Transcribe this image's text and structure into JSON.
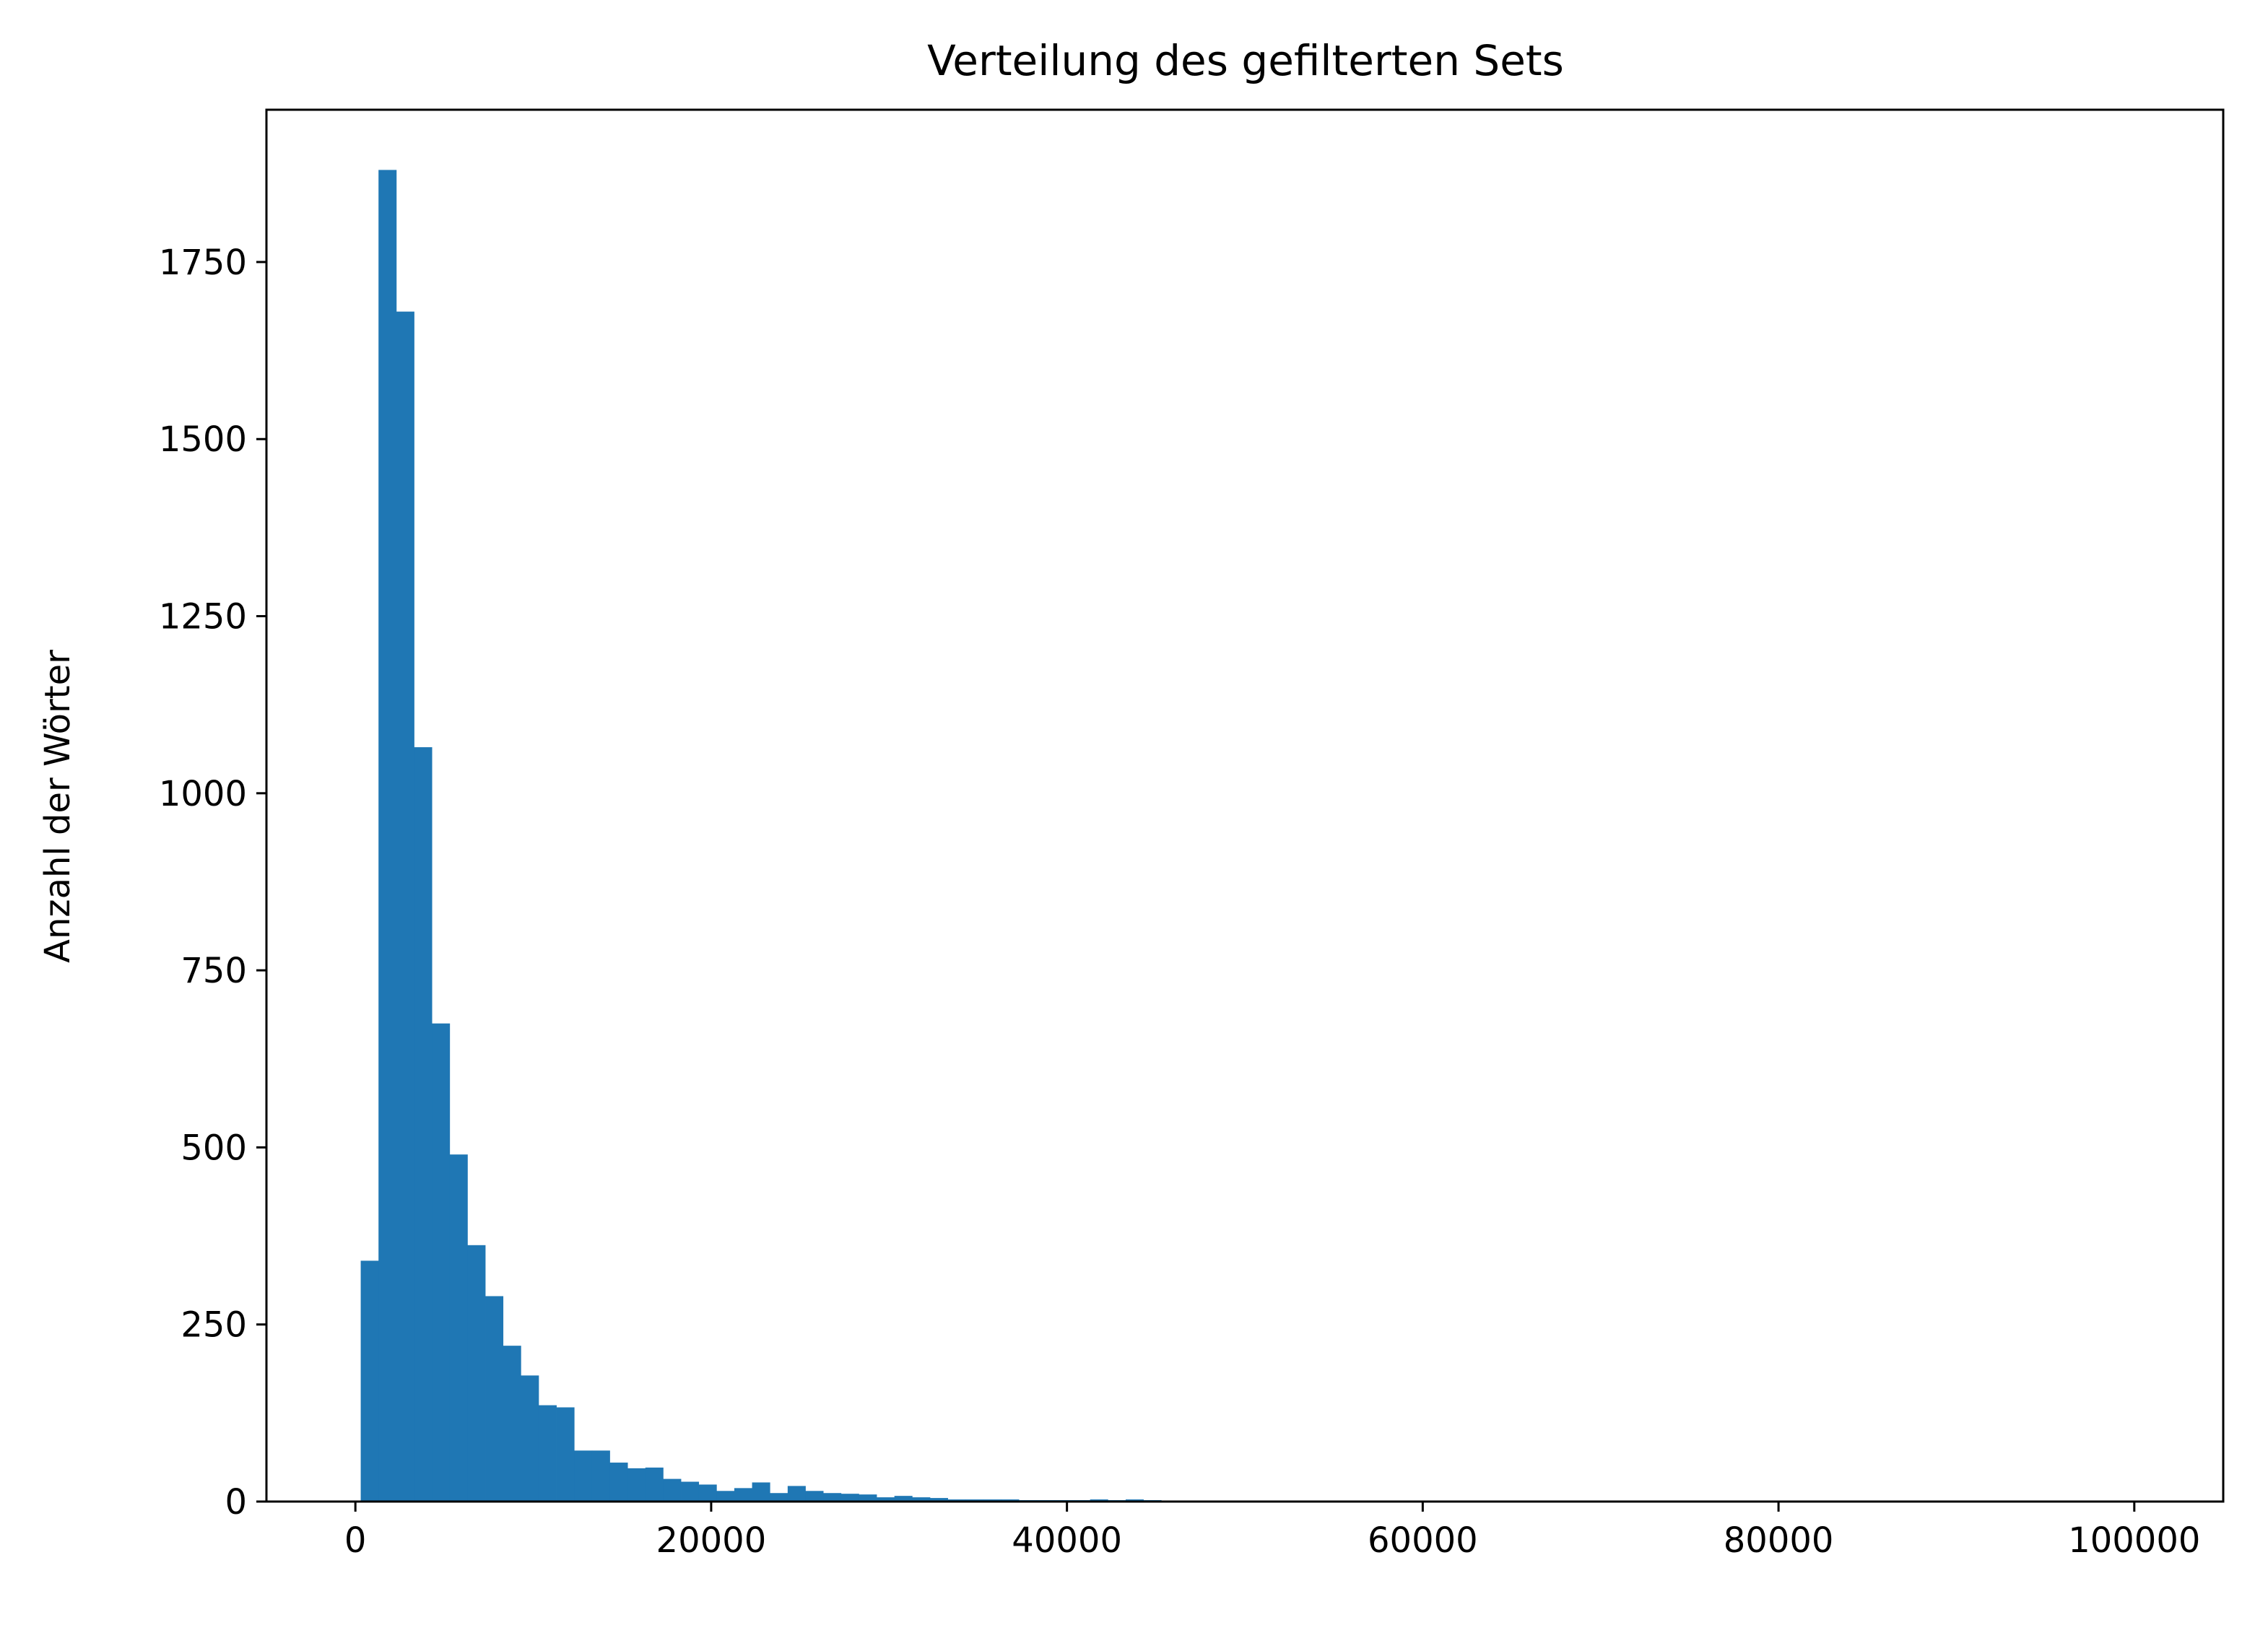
{
  "chart_data": {
    "type": "histogram",
    "title": "Verteilung des gefilterten Sets",
    "xlabel": "",
    "ylabel": "Anzahl der Wörter",
    "xlim": [
      -5000,
      105000
    ],
    "ylim": [
      0,
      1965
    ],
    "x_ticks": [
      {
        "value": 0,
        "label": "0"
      },
      {
        "value": 20000,
        "label": "20000"
      },
      {
        "value": 40000,
        "label": "40000"
      },
      {
        "value": 60000,
        "label": "60000"
      },
      {
        "value": 80000,
        "label": "80000"
      },
      {
        "value": 100000,
        "label": "100000"
      }
    ],
    "y_ticks": [
      {
        "value": 0,
        "label": "0"
      },
      {
        "value": 250,
        "label": "250"
      },
      {
        "value": 500,
        "label": "500"
      },
      {
        "value": 750,
        "label": "750"
      },
      {
        "value": 1000,
        "label": "1000"
      },
      {
        "value": 1250,
        "label": "1250"
      },
      {
        "value": 1500,
        "label": "1500"
      },
      {
        "value": 1750,
        "label": "1750"
      }
    ],
    "bin_start": 300,
    "bin_width": 1000,
    "values": [
      340,
      1880,
      1680,
      1065,
      675,
      490,
      362,
      290,
      220,
      178,
      136,
      133,
      72,
      72,
      55,
      47,
      48,
      32,
      28,
      24,
      15,
      19,
      27,
      12,
      22,
      15,
      12,
      11,
      10,
      6,
      8,
      6,
      5,
      3,
      3,
      3,
      3,
      2,
      2,
      2,
      2,
      3,
      2,
      3,
      2,
      1,
      1,
      1,
      1,
      1
    ],
    "bar_color": "#1f77b4",
    "grid": false,
    "legend": "none"
  }
}
